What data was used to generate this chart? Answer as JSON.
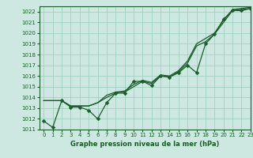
{
  "title": "Graphe pression niveau de la mer (hPa)",
  "bg_color": "#cce8e0",
  "grid_color": "#99ccbb",
  "line_color": "#1a5c2a",
  "xlim": [
    -0.5,
    23
  ],
  "ylim": [
    1011,
    1022.5
  ],
  "yticks": [
    1011,
    1012,
    1013,
    1014,
    1015,
    1016,
    1017,
    1018,
    1019,
    1020,
    1021,
    1022
  ],
  "xticks": [
    0,
    1,
    2,
    3,
    4,
    5,
    6,
    7,
    8,
    9,
    10,
    11,
    12,
    13,
    14,
    15,
    16,
    17,
    18,
    19,
    20,
    21,
    22,
    23
  ],
  "series": [
    {
      "y": [
        1011.8,
        1011.2,
        1013.7,
        1013.1,
        1013.1,
        1012.8,
        1012.0,
        1013.5,
        1014.4,
        1014.4,
        1015.5,
        1015.5,
        1015.1,
        1016.0,
        1015.9,
        1016.3,
        1017.0,
        1016.3,
        1019.0,
        1019.9,
        1021.3,
        1022.1,
        1022.1,
        1022.3
      ],
      "marker": true
    },
    {
      "y": [
        1013.7,
        1013.7,
        1013.7,
        1013.2,
        1013.2,
        1013.2,
        1013.5,
        1014.0,
        1014.4,
        1014.5,
        1015.0,
        1015.5,
        1015.3,
        1016.0,
        1015.9,
        1016.4,
        1017.2,
        1018.8,
        1019.2,
        1019.9,
        1021.0,
        1022.1,
        1022.2,
        1022.3
      ],
      "marker": false
    },
    {
      "y": [
        1013.7,
        1013.7,
        1013.7,
        1013.2,
        1013.2,
        1013.2,
        1013.5,
        1014.2,
        1014.5,
        1014.6,
        1015.2,
        1015.6,
        1015.4,
        1016.1,
        1016.0,
        1016.5,
        1017.4,
        1019.0,
        1019.5,
        1020.0,
        1021.2,
        1022.2,
        1022.3,
        1022.4
      ],
      "marker": false
    }
  ],
  "xlabel_fontsize": 6.0,
  "tick_fontsize": 5.0,
  "linewidth": 0.9,
  "markersize": 2.5
}
